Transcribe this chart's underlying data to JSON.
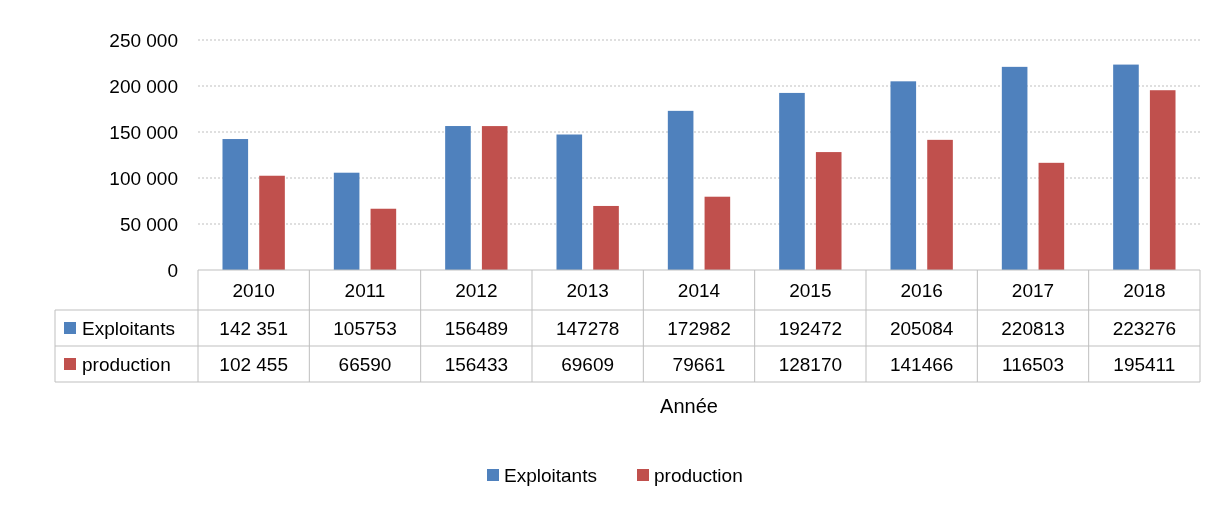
{
  "chart_data": {
    "type": "bar",
    "xlabel": "Année",
    "categories": [
      "2010",
      "2011",
      "2012",
      "2013",
      "2014",
      "2015",
      "2016",
      "2017",
      "2018"
    ],
    "series": [
      {
        "name": "Exploitants",
        "color": "#4f81bd",
        "values": [
          142351,
          105753,
          156489,
          147278,
          172982,
          192472,
          205084,
          220813,
          223276
        ],
        "value_labels": [
          "142 351",
          "105753",
          "156489",
          "147278",
          "172982",
          "192472",
          "205084",
          "220813",
          "223276"
        ]
      },
      {
        "name": "production",
        "color": "#c0504d",
        "values": [
          102455,
          66590,
          156433,
          69609,
          79661,
          128170,
          141466,
          116503,
          195411
        ],
        "value_labels": [
          "102 455",
          "66590",
          "156433",
          "69609",
          "79661",
          "128170",
          "141466",
          "116503",
          "195411"
        ]
      }
    ],
    "ylim": [
      0,
      250000
    ],
    "yticks": [
      0,
      {
        "value": 50000,
        "label": "50 000"
      },
      {
        "value": 100000,
        "label": "100 000"
      },
      {
        "value": 150000,
        "label": "150 000"
      },
      {
        "value": 200000,
        "label": "200 000"
      },
      {
        "value": 250000,
        "label": "250 000"
      }
    ],
    "grid": "y",
    "legend": "bottom"
  }
}
